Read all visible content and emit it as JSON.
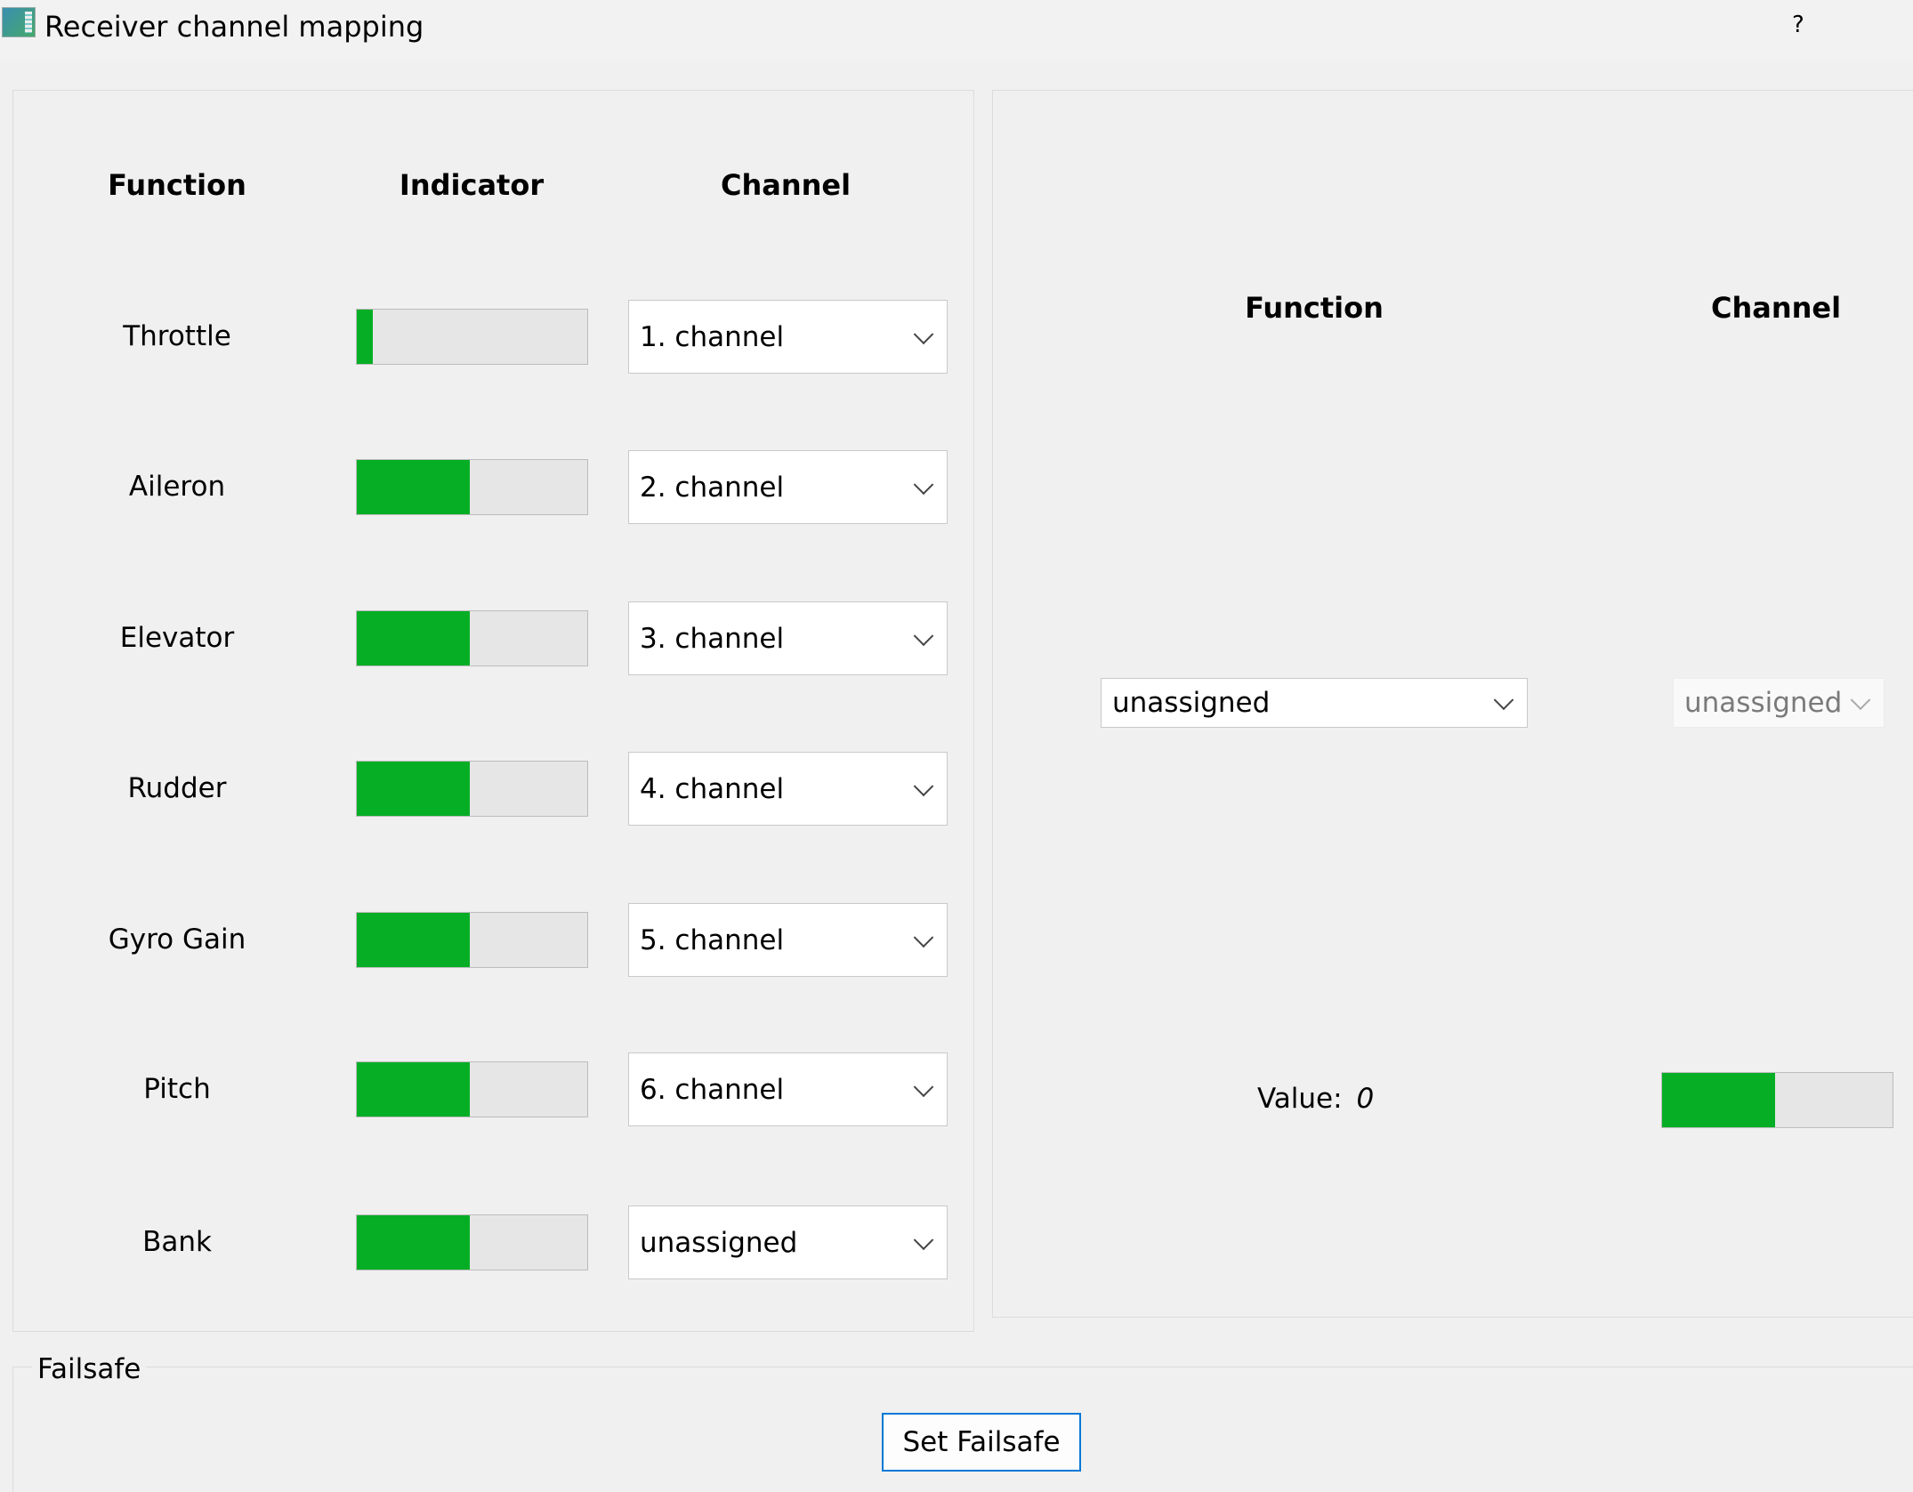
{
  "window": {
    "title": "Receiver channel mapping",
    "help_label": "?"
  },
  "colors": {
    "indicator_fill": "#06ae26",
    "indicator_track": "#e6e6e6",
    "focus_border": "#0078d7"
  },
  "mapping": {
    "headers": {
      "function": "Function",
      "indicator": "Indicator",
      "channel": "Channel"
    },
    "rows": [
      {
        "function": "Throttle",
        "level": 0.07,
        "channel": "1. channel"
      },
      {
        "function": "Aileron",
        "level": 0.49,
        "channel": "2. channel"
      },
      {
        "function": "Elevator",
        "level": 0.49,
        "channel": "3. channel"
      },
      {
        "function": "Rudder",
        "level": 0.49,
        "channel": "4. channel"
      },
      {
        "function": "Gyro Gain",
        "level": 0.49,
        "channel": "5. channel"
      },
      {
        "function": "Pitch",
        "level": 0.49,
        "channel": "6. channel"
      },
      {
        "function": "Bank",
        "level": 0.49,
        "channel": "unassigned"
      }
    ]
  },
  "aux": {
    "headers": {
      "function": "Function",
      "channel": "Channel"
    },
    "function_value": "unassigned",
    "channel_value": "unassigned",
    "value_label": "Value:",
    "value": "0",
    "level": 0.49
  },
  "failsafe": {
    "title": "Failsafe",
    "button": "Set Failsafe"
  }
}
